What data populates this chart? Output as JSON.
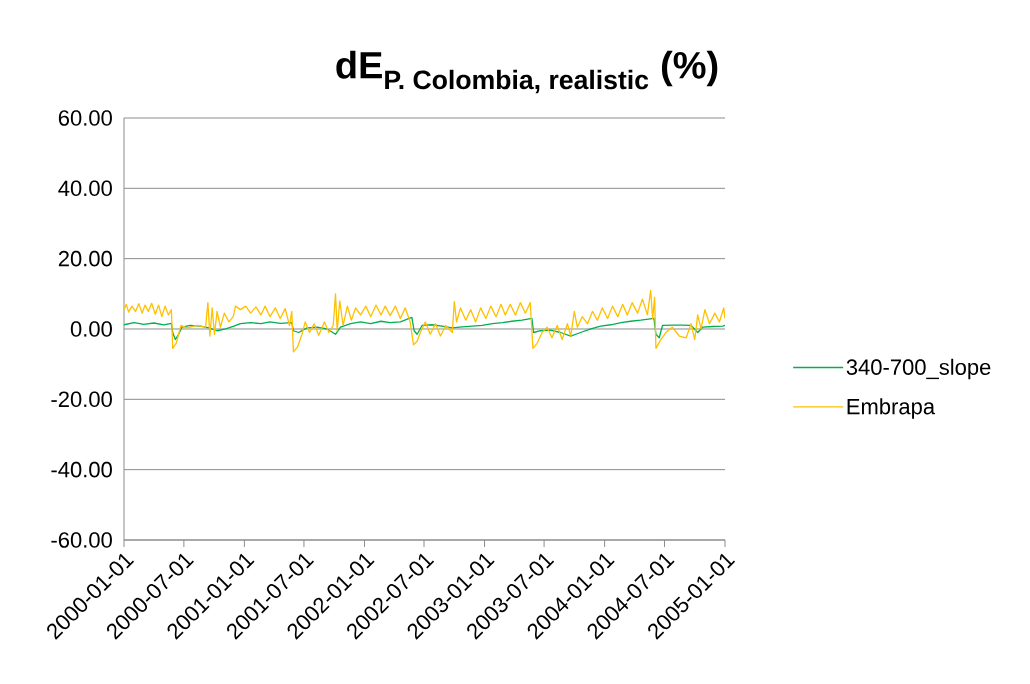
{
  "chart_data": {
    "type": "line",
    "title": "\\text{dE}_{\\text{P. Colombia, realistic}}\\text{ (\\%)}",
    "xlim": [
      "2000-01-01",
      "2005-01-01"
    ],
    "xticks": [
      "2000-01-01",
      "2000-07-01",
      "2001-01-01",
      "2001-07-01",
      "2002-01-01",
      "2002-07-01",
      "2003-01-01",
      "2003-07-01",
      "2004-01-01",
      "2004-07-01",
      "2005-01-01"
    ],
    "ylim": [
      -60,
      60
    ],
    "yticks": [
      {
        "value": -60,
        "label": "-60.00"
      },
      {
        "value": -40,
        "label": "-40.00"
      },
      {
        "value": -20,
        "label": "-20.00"
      },
      {
        "value": 0,
        "label": "0.00"
      },
      {
        "value": 20,
        "label": "20.00"
      },
      {
        "value": 40,
        "label": "40.00"
      },
      {
        "value": 60,
        "label": "60.00"
      }
    ],
    "grid": "y",
    "legend": "right",
    "series": [
      {
        "name": "340-700_slope",
        "color": "#00b050",
        "x": [
          "2000-01-01",
          "2000-02-01",
          "2000-03-01",
          "2000-04-01",
          "2000-05-01",
          "2000-05-24",
          "2000-05-28",
          "2000-06-05",
          "2000-06-15",
          "2000-06-25",
          "2000-07-20",
          "2000-08-20",
          "2000-09-15",
          "2000-10-10",
          "2000-11-05",
          "2000-11-30",
          "2000-12-20",
          "2001-01-20",
          "2001-02-20",
          "2001-03-20",
          "2001-04-20",
          "2001-05-25",
          "2001-05-30",
          "2001-06-15",
          "2001-07-10",
          "2001-08-10",
          "2001-09-10",
          "2001-10-05",
          "2001-10-20",
          "2001-11-20",
          "2001-12-20",
          "2002-01-20",
          "2002-02-20",
          "2002-03-20",
          "2002-04-20",
          "2002-05-25",
          "2002-06-01",
          "2002-06-10",
          "2002-06-25",
          "2002-07-25",
          "2002-08-25",
          "2002-09-25",
          "2002-10-25",
          "2002-11-25",
          "2002-12-25",
          "2003-01-25",
          "2003-02-25",
          "2003-03-25",
          "2003-04-25",
          "2003-05-25",
          "2003-05-30",
          "2003-06-20",
          "2003-07-20",
          "2003-08-20",
          "2003-09-20",
          "2003-10-20",
          "2003-11-20",
          "2003-12-20",
          "2004-01-20",
          "2004-02-20",
          "2004-03-20",
          "2004-04-20",
          "2004-05-30",
          "2004-06-05",
          "2004-06-15",
          "2004-06-25",
          "2004-07-25",
          "2004-08-25",
          "2004-09-20",
          "2004-10-10",
          "2004-10-25",
          "2004-11-25",
          "2004-12-25",
          "2005-01-01"
        ],
        "values": [
          1.2,
          1.8,
          1.3,
          1.7,
          1.2,
          1.6,
          -1.0,
          -3.0,
          -1.5,
          0.5,
          1.0,
          0.8,
          0.3,
          -0.5,
          0.0,
          0.8,
          1.5,
          1.8,
          1.5,
          2.0,
          1.6,
          1.8,
          -0.5,
          -1.0,
          0.3,
          0.5,
          0.0,
          -1.5,
          0.5,
          1.5,
          2.0,
          1.5,
          2.2,
          1.8,
          2.0,
          3.3,
          -0.5,
          -1.5,
          1.0,
          1.2,
          0.8,
          0.3,
          0.6,
          0.8,
          1.0,
          1.5,
          1.8,
          2.2,
          2.5,
          3.0,
          -1.0,
          -0.5,
          -0.3,
          -1.0,
          -2.0,
          -1.0,
          0.0,
          0.8,
          1.2,
          1.8,
          2.2,
          2.5,
          3.0,
          -1.5,
          -2.5,
          1.0,
          1.1,
          1.1,
          1.0,
          -1.0,
          0.5,
          0.7,
          0.8,
          1.0
        ]
      },
      {
        "name": "Embrapa",
        "color": "#ffc000",
        "x": [
          "2000-01-01",
          "2000-01-08",
          "2000-01-15",
          "2000-01-25",
          "2000-02-05",
          "2000-02-15",
          "2000-02-25",
          "2000-03-05",
          "2000-03-15",
          "2000-03-25",
          "2000-04-05",
          "2000-04-15",
          "2000-04-25",
          "2000-05-05",
          "2000-05-15",
          "2000-05-24",
          "2000-05-28",
          "2000-06-08",
          "2000-06-15",
          "2000-06-22",
          "2000-07-10",
          "2000-08-10",
          "2000-09-05",
          "2000-09-12",
          "2000-09-18",
          "2000-09-25",
          "2000-10-02",
          "2000-10-10",
          "2000-10-20",
          "2000-11-01",
          "2000-11-15",
          "2000-11-28",
          "2000-12-05",
          "2000-12-20",
          "2001-01-05",
          "2001-01-20",
          "2001-02-05",
          "2001-02-20",
          "2001-03-05",
          "2001-03-20",
          "2001-04-05",
          "2001-04-20",
          "2001-05-05",
          "2001-05-18",
          "2001-05-25",
          "2001-05-30",
          "2001-06-12",
          "2001-06-25",
          "2001-07-05",
          "2001-07-18",
          "2001-08-01",
          "2001-08-15",
          "2001-09-01",
          "2001-09-15",
          "2001-09-28",
          "2001-10-05",
          "2001-10-10",
          "2001-10-18",
          "2001-10-28",
          "2001-11-10",
          "2001-11-22",
          "2001-12-05",
          "2001-12-20",
          "2002-01-05",
          "2002-01-20",
          "2002-02-05",
          "2002-02-20",
          "2002-03-05",
          "2002-03-20",
          "2002-04-05",
          "2002-04-20",
          "2002-05-05",
          "2002-05-20",
          "2002-05-30",
          "2002-06-10",
          "2002-06-20",
          "2002-07-05",
          "2002-07-20",
          "2002-08-05",
          "2002-08-20",
          "2002-09-05",
          "2002-09-25",
          "2002-10-01",
          "2002-10-08",
          "2002-10-20",
          "2002-11-05",
          "2002-11-20",
          "2002-12-05",
          "2002-12-20",
          "2003-01-05",
          "2003-01-20",
          "2003-02-05",
          "2003-02-20",
          "2003-03-05",
          "2003-03-20",
          "2003-04-05",
          "2003-04-20",
          "2003-05-05",
          "2003-05-20",
          "2003-05-28",
          "2003-06-10",
          "2003-06-25",
          "2003-07-10",
          "2003-07-25",
          "2003-08-10",
          "2003-08-25",
          "2003-09-10",
          "2003-09-20",
          "2003-10-01",
          "2003-10-10",
          "2003-10-25",
          "2003-11-10",
          "2003-11-25",
          "2003-12-10",
          "2003-12-25",
          "2004-01-10",
          "2004-01-25",
          "2004-02-10",
          "2004-02-25",
          "2004-03-10",
          "2004-03-25",
          "2004-04-10",
          "2004-04-25",
          "2004-05-10",
          "2004-05-20",
          "2004-05-26",
          "2004-06-01",
          "2004-06-05",
          "2004-06-20",
          "2004-07-05",
          "2004-07-25",
          "2004-08-15",
          "2004-09-05",
          "2004-09-20",
          "2004-10-01",
          "2004-10-10",
          "2004-10-20",
          "2004-11-01",
          "2004-11-15",
          "2004-12-01",
          "2004-12-15",
          "2004-12-28",
          "2005-01-01"
        ],
        "values": [
          5.5,
          7.0,
          4.8,
          6.5,
          5.0,
          7.2,
          4.5,
          6.8,
          5.0,
          7.3,
          4.2,
          6.8,
          3.5,
          6.5,
          4.0,
          5.5,
          -5.5,
          -4.0,
          -1.5,
          1.0,
          0.3,
          1.0,
          0.5,
          7.5,
          -2.0,
          6.0,
          -1.5,
          5.0,
          0.5,
          4.5,
          2.0,
          3.5,
          6.5,
          5.5,
          6.5,
          4.5,
          6.3,
          4.0,
          6.5,
          3.5,
          6.0,
          3.0,
          5.8,
          1.0,
          5.0,
          -6.5,
          -5.0,
          -1.5,
          2.0,
          -1.0,
          1.5,
          -1.8,
          2.0,
          -1.0,
          1.0,
          10.0,
          -0.5,
          8.0,
          1.0,
          6.5,
          2.5,
          6.0,
          4.0,
          6.5,
          3.5,
          6.8,
          4.0,
          6.5,
          3.8,
          6.5,
          3.0,
          6.0,
          2.0,
          -4.5,
          -3.5,
          -1.0,
          2.0,
          -1.5,
          1.5,
          -2.0,
          1.0,
          -1.0,
          7.8,
          2.0,
          6.0,
          2.5,
          5.5,
          2.0,
          6.0,
          3.0,
          6.5,
          3.5,
          7.0,
          4.0,
          7.0,
          4.0,
          7.5,
          4.5,
          7.5,
          -5.5,
          -4.0,
          -1.0,
          0.5,
          -2.5,
          1.0,
          -3.0,
          1.5,
          -2.0,
          5.0,
          0.5,
          3.5,
          1.5,
          5.0,
          2.5,
          6.0,
          3.0,
          6.5,
          3.5,
          7.0,
          4.0,
          7.5,
          4.5,
          8.5,
          4.0,
          11.0,
          3.0,
          9.0,
          -5.5,
          -3.0,
          -1.0,
          0.5,
          -2.0,
          -2.5,
          1.5,
          -3.0,
          4.0,
          0.0,
          5.5,
          1.5,
          4.5,
          2.0,
          6.0,
          3.0
        ]
      }
    ]
  }
}
